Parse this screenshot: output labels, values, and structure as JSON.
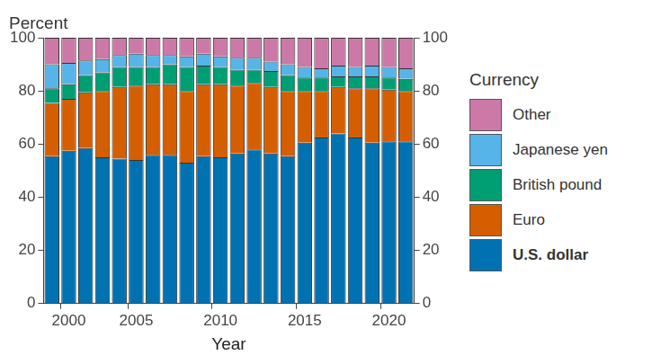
{
  "chart_data": {
    "type": "bar",
    "stacked": true,
    "ylabel": "Percent",
    "xlabel": "Year",
    "legend_title": "Currency",
    "legend": "right",
    "grid": false,
    "categories": [
      null,
      "2000",
      null,
      null,
      null,
      "2005",
      null,
      null,
      null,
      null,
      "2010",
      null,
      null,
      null,
      null,
      "2015",
      null,
      null,
      null,
      null,
      "2020",
      null
    ],
    "ylim": [
      0,
      100
    ],
    "yticks": [
      0,
      20,
      40,
      60,
      80,
      100
    ],
    "y2lim": [
      0,
      100
    ],
    "y2ticks": [
      0,
      20,
      40,
      60,
      80,
      100
    ],
    "series": [
      {
        "name": "U.S. dollar",
        "color": "#0072B2",
        "values": [
          55.5,
          57.5,
          58.5,
          55,
          54.5,
          54,
          56,
          56,
          53,
          55.5,
          55,
          56.5,
          58,
          56.5,
          55.5,
          60.5,
          62.5,
          64,
          62.5,
          60.5,
          61,
          61
        ]
      },
      {
        "name": "Euro",
        "color": "#D55E00",
        "values": [
          20,
          19.5,
          21,
          25,
          27,
          28,
          26.5,
          26.5,
          27,
          27,
          27.5,
          25.5,
          25,
          25,
          24.5,
          19.5,
          17.5,
          17.5,
          18.5,
          20.5,
          19.5,
          19
        ]
      },
      {
        "name": "British pound",
        "color": "#009E73",
        "values": [
          5.5,
          5.5,
          6.5,
          7,
          7.5,
          7,
          6.5,
          7.5,
          9,
          7,
          6.5,
          6,
          5,
          6,
          6,
          5,
          5,
          4,
          4.5,
          4.5,
          4.5,
          4.5
        ]
      },
      {
        "name": "Japanese yen",
        "color": "#56B4E9",
        "values": [
          9,
          8,
          5.5,
          5,
          4.5,
          5,
          4.5,
          3.5,
          4,
          4.5,
          4,
          4.5,
          4.5,
          3.5,
          4,
          4,
          3.5,
          4,
          3.5,
          4,
          4,
          4
        ]
      },
      {
        "name": "Other",
        "color": "#CC79A7",
        "values": [
          10,
          9.5,
          8.5,
          8,
          6.5,
          6,
          6.5,
          6.5,
          7,
          6,
          7,
          7.5,
          7.5,
          9,
          10,
          11,
          11.5,
          10.5,
          11,
          10.5,
          11,
          11.5
        ]
      }
    ]
  }
}
